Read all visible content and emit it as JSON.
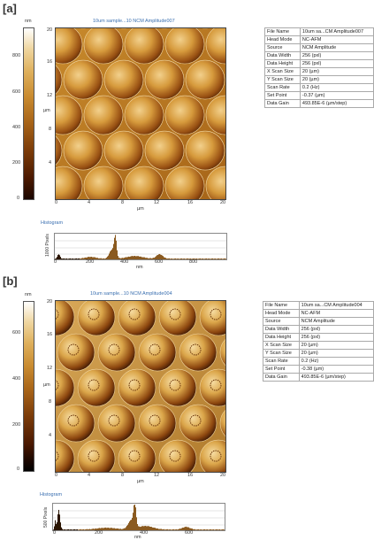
{
  "panels": [
    {
      "label": "[a]",
      "image_title": "10um sample...10 NCM Amplitude007",
      "colorbar_unit": "nm",
      "colorbar_ticks": [
        "800",
        "600",
        "400",
        "200",
        "0"
      ],
      "y_unit": "µm",
      "y_ticks": [
        "20",
        "16",
        "12",
        "8",
        "4"
      ],
      "x_ticks": [
        "0",
        "4",
        "8",
        "12",
        "16",
        "20"
      ],
      "x_unit": "µm",
      "info": [
        {
          "key": "File Name",
          "value": "10um sa...CM Amplitude007"
        },
        {
          "key": "Head Mode",
          "value": "NC-AFM"
        },
        {
          "key": "Source",
          "value": "NCM Amplitude"
        },
        {
          "key": "Data Width",
          "value": "256 (pxl)"
        },
        {
          "key": "Data Height",
          "value": "256 (pxl)"
        },
        {
          "key": "X Scan Size",
          "value": "20 (µm)"
        },
        {
          "key": "Y Scan Size",
          "value": "20 (µm)"
        },
        {
          "key": "Scan Rate",
          "value": "0.2 (Hz)"
        },
        {
          "key": "Set Point",
          "value": "-0.37 (µm)"
        },
        {
          "key": "Data Gain",
          "value": "493.85E-6 (µm/step)"
        }
      ],
      "histogram": {
        "title": "Histogram",
        "y_label": "Pixels",
        "y_tick": "1000",
        "x_ticks": [
          "0",
          "200",
          "400",
          "600",
          "800"
        ],
        "x_unit": "nm"
      }
    },
    {
      "label": "[b]",
      "image_title": "10um sample...10 NCM Amplitude004",
      "colorbar_unit": "nm",
      "colorbar_ticks": [
        "600",
        "400",
        "200",
        "0"
      ],
      "y_unit": "µm",
      "y_ticks": [
        "20",
        "16",
        "12",
        "8",
        "4"
      ],
      "x_ticks": [
        "0",
        "4",
        "8",
        "12",
        "16",
        "20"
      ],
      "x_unit": "µm",
      "info": [
        {
          "key": "File Name",
          "value": "10um sa...CM Amplitude004"
        },
        {
          "key": "Head Mode",
          "value": "NC-AFM"
        },
        {
          "key": "Source",
          "value": "NCM Amplitude"
        },
        {
          "key": "Data Width",
          "value": "256 (pxl)"
        },
        {
          "key": "Data Height",
          "value": "256 (pxl)"
        },
        {
          "key": "X Scan Size",
          "value": "20 (µm)"
        },
        {
          "key": "Y Scan Size",
          "value": "20 (µm)"
        },
        {
          "key": "Scan Rate",
          "value": "0.2 (Hz)"
        },
        {
          "key": "Set Point",
          "value": "-0.38 (µm)"
        },
        {
          "key": "Data Gain",
          "value": "493.85E-6 (µm/step)"
        }
      ],
      "histogram": {
        "title": "Histogram",
        "y_label": "Pixels",
        "y_tick": "500",
        "x_ticks": [
          "0",
          "200",
          "400",
          "600"
        ],
        "x_unit": "nm"
      }
    }
  ],
  "colors": {
    "title_blue": "#3a6fb0",
    "dome_light": "#e8c07a",
    "dome_dark": "#7a3e0c",
    "background_brown": "#b6761f"
  }
}
